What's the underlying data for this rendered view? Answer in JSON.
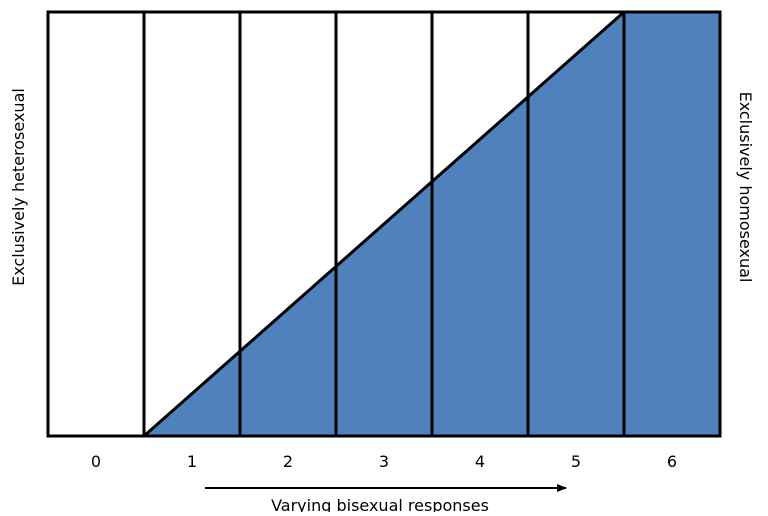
{
  "scale": {
    "labels": [
      "0",
      "1",
      "2",
      "3",
      "4",
      "5",
      "6"
    ]
  },
  "left_label": "Exclusively heterosexual",
  "right_label": "Exclusively homosexual",
  "axis_label": "Varying bisexual responses"
}
